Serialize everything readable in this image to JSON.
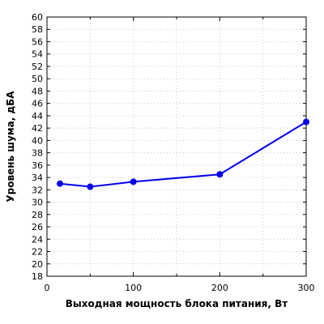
{
  "chart_data": {
    "type": "line",
    "title": "",
    "xlabel": "Выходная мощность блока питания, Вт",
    "ylabel": "Уровень шума, дБА",
    "xlim": [
      0,
      300
    ],
    "ylim": [
      18,
      60
    ],
    "x_major_ticks": [
      0,
      100,
      200,
      300
    ],
    "x_minor_ticks": [
      50,
      150,
      250
    ],
    "y_ticks": [
      18,
      20,
      22,
      24,
      26,
      28,
      30,
      32,
      34,
      36,
      38,
      40,
      42,
      44,
      46,
      48,
      50,
      52,
      54,
      56,
      58,
      60
    ],
    "grid": true,
    "series": [
      {
        "color": "#0000ee",
        "x": [
          15,
          50,
          100,
          200,
          300
        ],
        "y": [
          33.0,
          32.5,
          33.3,
          34.5,
          43.0
        ]
      }
    ]
  }
}
